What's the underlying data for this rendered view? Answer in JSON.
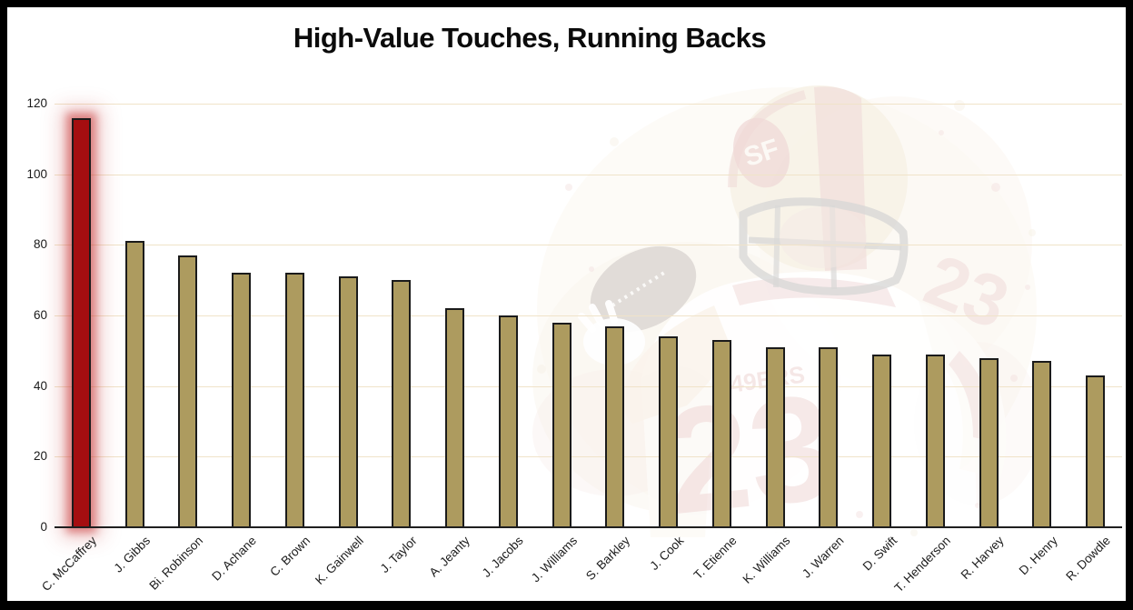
{
  "title": "High-Value Touches, Running Backs",
  "watermark": {
    "description": "faded watercolor image of 49ers running back",
    "jersey_number": "23",
    "wordmark": "49ERS",
    "helmet_logo": "SF",
    "colors": {
      "gold": "#d9c28b",
      "red": "#b03a36",
      "white": "#ffffff",
      "ball": "#5a4232"
    }
  },
  "chart_data": {
    "type": "bar",
    "title": "High-Value Touches, Running Backs",
    "categories": [
      "C. McCaffrey",
      "J. Gibbs",
      "Bi. Robinson",
      "D. Achane",
      "C. Brown",
      "K. Gainwell",
      "J. Taylor",
      "A. Jeanty",
      "J. Jacobs",
      "J. Williams",
      "S. Barkley",
      "J. Cook",
      "T. Etienne",
      "K. Williams",
      "J. Warren",
      "D. Swift",
      "T. Henderson",
      "R. Harvey",
      "D. Henry",
      "R. Dowdle"
    ],
    "values": [
      116,
      81,
      77,
      72,
      72,
      71,
      70,
      62,
      60,
      58,
      57,
      54,
      53,
      51,
      51,
      49,
      49,
      48,
      47,
      43
    ],
    "highlight_category": "C. McCaffrey",
    "xlabel": "",
    "ylabel": "",
    "ylim": [
      0,
      120
    ],
    "yticks": [
      0,
      20,
      40,
      60,
      80,
      100,
      120
    ],
    "grid": true,
    "legend": false,
    "colors": {
      "bar_fill": "#ad9b5f",
      "bar_border": "#1b1b1b",
      "highlight_fill": "#a50e10",
      "highlight_glow": "rgba(201,57,57,0.55)",
      "gridline": "#f0e3c9",
      "axis_line": "#1f1f1f",
      "tick_text": "#1a1a1a",
      "frame": "#000000"
    }
  }
}
